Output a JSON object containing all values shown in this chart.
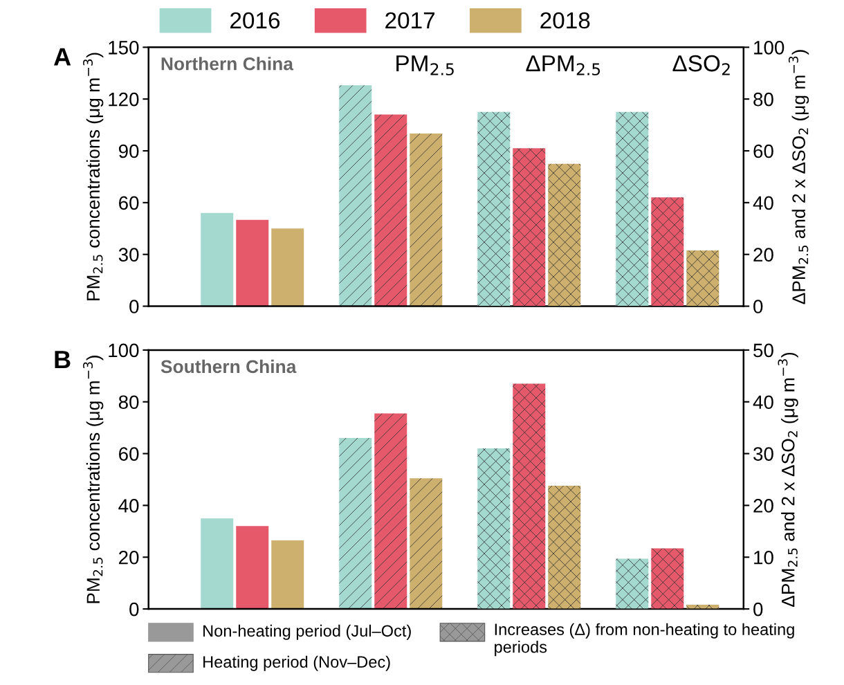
{
  "chart_data": [
    {
      "type": "bar",
      "title": "A",
      "categories": [
        null,
        null,
        null,
        null
      ],
      "ylabel": "PM$_{2.5}$ concentrations (μg m$^{−3}$)",
      "y2label": "ΔPM$_{2.5}$ and 2 x ΔSO$_{2}$ (μg m$^{−3}$)",
      "ylim": [
        0,
        150
      ],
      "yticks": [
        0,
        30,
        60,
        90,
        120,
        150
      ],
      "y2lim": [
        0,
        100
      ],
      "y2ticks": [
        0,
        20,
        40,
        60,
        80,
        100
      ],
      "annotations": [
        "Northern China",
        "PM$_{2.5}$",
        "ΔPM$_{2.5}$",
        "ΔSO$_{2}$"
      ],
      "legend": "top",
      "grid": false,
      "series": [
        {
          "name": "2016",
          "color": "#a3d9cf",
          "values": [
            54,
            128,
            null,
            null
          ]
        },
        {
          "name": "2017",
          "color": "#e6596a",
          "values": [
            50,
            111,
            null,
            null
          ]
        },
        {
          "name": "2018",
          "color": "#cdb06d",
          "values": [
            45,
            100,
            null,
            null
          ]
        },
        {
          "color": "#a3d9cf",
          "axis": "y2",
          "values": [
            null,
            null,
            75,
            75
          ]
        },
        {
          "color": "#e6596a",
          "axis": "y2",
          "values": [
            null,
            null,
            61,
            42
          ]
        },
        {
          "color": "#cdb06d",
          "axis": "y2",
          "values": [
            null,
            null,
            55,
            21.5
          ]
        }
      ]
    },
    {
      "type": "bar",
      "title": "B",
      "categories": [
        null,
        null,
        null,
        null
      ],
      "ylabel": "PM$_{2.5}$ concentrations (μg m$^{−3}$)",
      "y2label": "ΔPM$_{2.5}$ and 2 x ΔSO$_{2}$ (μg m$^{−3}$)",
      "ylim": [
        0,
        100
      ],
      "yticks": [
        0,
        20,
        40,
        60,
        80,
        100
      ],
      "y2lim": [
        0,
        50
      ],
      "y2ticks": [
        0,
        10,
        20,
        30,
        40,
        50
      ],
      "annotations": [
        "Southern China",
        "Non-heating period (Jul–Oct)",
        "Heating period (Nov–Dec)",
        "Increases (Δ) from non-heating to heating periods"
      ],
      "grid": false,
      "series": [
        {
          "color": "#a3d9cf",
          "values": [
            35,
            66,
            null,
            null
          ]
        },
        {
          "color": "#e6596a",
          "values": [
            32,
            75.5,
            null,
            null
          ]
        },
        {
          "color": "#cdb06d",
          "values": [
            26.5,
            50.5,
            null,
            null
          ]
        },
        {
          "color": "#a3d9cf",
          "axis": "y2",
          "values": [
            null,
            null,
            31,
            9.7
          ]
        },
        {
          "color": "#e6596a",
          "axis": "y2",
          "values": [
            null,
            null,
            43.5,
            11.7
          ]
        },
        {
          "color": "#cdb06d",
          "axis": "y2",
          "values": [
            null,
            null,
            23.8,
            0.8
          ]
        }
      ]
    }
  ]
}
